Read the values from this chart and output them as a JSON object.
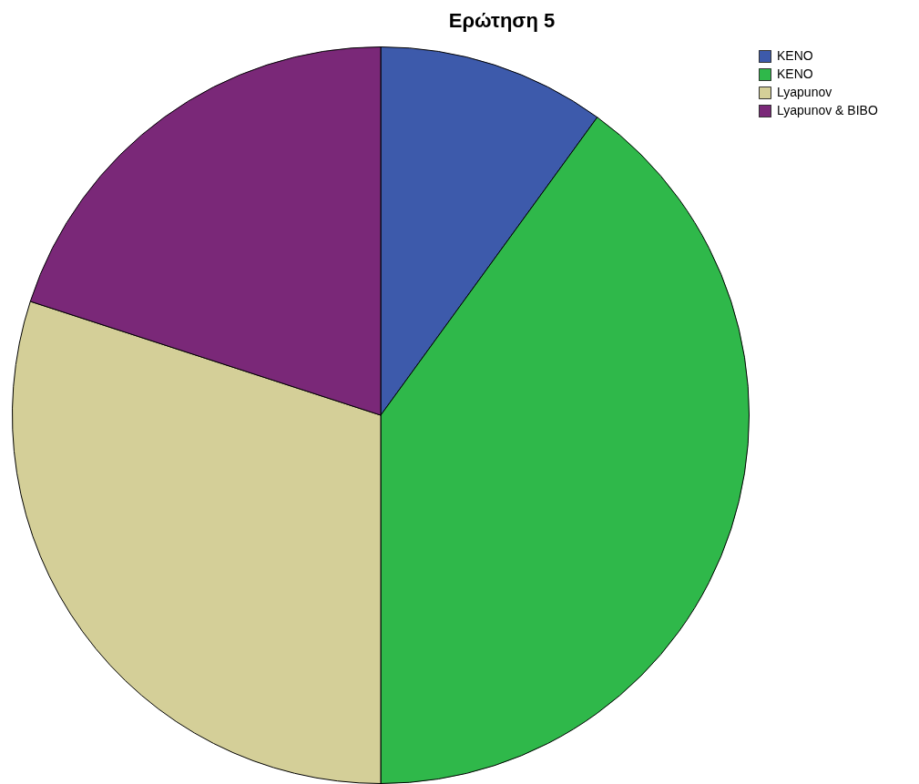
{
  "chart_data": {
    "type": "pie",
    "title": "Ερώτηση 5",
    "categories": [
      "ΚΕΝΟ",
      "ΚΕΝΟ",
      "Lyapunov",
      "Lyapunov & BIBO"
    ],
    "values": [
      10,
      40,
      30,
      20
    ],
    "colors": [
      "#3d5aab",
      "#2fb84a",
      "#d4cf98",
      "#7a2878"
    ],
    "legend": "top right"
  }
}
